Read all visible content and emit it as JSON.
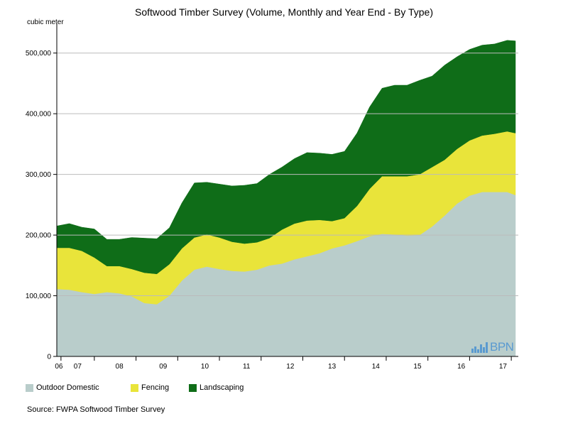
{
  "colors": {
    "outdoor": "#b9cdcb",
    "fencing": "#e9e43a",
    "landscaping": "#0f6d18",
    "grid": "#bbbbbb",
    "logo": "#5a9ad0"
  },
  "logo_text": "BPN",
  "source": "Source: FWPA Softwood Timber Survey",
  "chart_data": {
    "type": "area",
    "title": "Softwood Timber Survey (Volume, Monthly and Year End - By Type)",
    "ylabel": "cubic meter",
    "xlabel": "",
    "ylim": [
      0,
      550000
    ],
    "yticks": [
      0,
      100000,
      200000,
      300000,
      400000,
      500000
    ],
    "ytick_labels": [
      "0",
      "100,000",
      "200,000",
      "300,000",
      "400,000",
      "500,000"
    ],
    "stacked": true,
    "x_labels": [
      "06",
      "07",
      "08",
      "09",
      "10",
      "11",
      "12",
      "13",
      "14",
      "15",
      "16",
      "17"
    ],
    "x_label_pos": [
      0.5,
      5,
      15,
      25.5,
      35.5,
      45.5,
      56,
      66,
      76.5,
      86.5,
      97,
      107
    ],
    "x_tick_pos": [
      1,
      9,
      19,
      29,
      39,
      49,
      59,
      69,
      79,
      89,
      99,
      109
    ],
    "x": [
      0,
      3,
      6,
      9,
      12,
      15,
      18,
      21,
      24,
      27,
      30,
      33,
      36,
      39,
      42,
      45,
      48,
      51,
      54,
      57,
      60,
      63,
      66,
      69,
      72,
      75,
      78,
      81,
      84,
      87,
      90,
      93,
      96,
      99,
      102,
      105,
      108,
      110
    ],
    "series": [
      {
        "name": "Outdoor Domestic",
        "values": [
          111000,
          110000,
          106000,
          103000,
          106000,
          104000,
          99000,
          88000,
          86000,
          100000,
          125000,
          143000,
          148000,
          144000,
          141000,
          140000,
          143000,
          150000,
          153000,
          160000,
          165000,
          170000,
          178000,
          183000,
          190000,
          198000,
          202000,
          201000,
          199000,
          200000,
          214000,
          232000,
          252000,
          265000,
          271000,
          271000,
          271000,
          266000
        ]
      },
      {
        "name": "Fencing",
        "values": [
          68000,
          69000,
          68000,
          60000,
          43000,
          45000,
          45000,
          50000,
          50000,
          52000,
          53000,
          53000,
          53000,
          52000,
          48000,
          46000,
          45000,
          45000,
          56000,
          59000,
          59000,
          55000,
          45000,
          45000,
          58000,
          78000,
          95000,
          96000,
          98000,
          100000,
          98000,
          92000,
          90000,
          91000,
          93000,
          96000,
          100000,
          102000
        ]
      },
      {
        "name": "Landscaping",
        "values": [
          36000,
          40000,
          39000,
          47000,
          44000,
          44000,
          52000,
          57000,
          58000,
          60000,
          75000,
          90000,
          86000,
          88000,
          92000,
          96000,
          97000,
          105000,
          103000,
          107000,
          112000,
          110000,
          110000,
          110000,
          120000,
          135000,
          145000,
          150000,
          150000,
          155000,
          150000,
          156000,
          152000,
          150000,
          149000,
          148000,
          150000,
          152000
        ]
      }
    ],
    "legend": [
      {
        "name": "Outdoor Domestic",
        "color": "#b9cdcb"
      },
      {
        "name": "Fencing",
        "color": "#e9e43a"
      },
      {
        "name": "Landscaping",
        "color": "#0f6d18"
      }
    ],
    "legend_position": "bottom-left"
  }
}
